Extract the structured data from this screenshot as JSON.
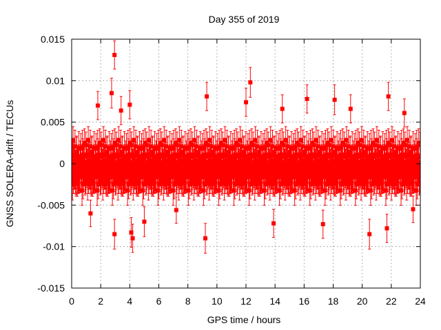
{
  "chart_data": {
    "type": "scatter",
    "title": "Day 355 of 2019",
    "xlabel": "GPS time / hours",
    "ylabel": "GNSS SOLERA-drift / TECUs",
    "xlim": [
      0,
      24
    ],
    "ylim": [
      -0.015,
      0.015
    ],
    "xticks": [
      0,
      2,
      4,
      6,
      8,
      10,
      12,
      14,
      16,
      18,
      20,
      22,
      24
    ],
    "xtick_labels": [
      "0",
      "2",
      "4",
      "6",
      "8",
      "10",
      "12",
      "14",
      "16",
      "18",
      "20",
      "22",
      "24"
    ],
    "yticks": [
      -0.015,
      -0.01,
      -0.005,
      0,
      0.005,
      0.01,
      0.015
    ],
    "ytick_labels": [
      "-0.015",
      "-0.01",
      "-0.005",
      "0",
      "0.005",
      "0.01",
      "0.015"
    ],
    "grid": true,
    "legend": "none",
    "series_color": "#ff0000",
    "marker": "square",
    "error_bars": true,
    "typical_error": 0.0018,
    "typical_spread_std": 0.0025,
    "outliers": [
      {
        "x": 2.95,
        "y": 0.0131,
        "err": 0.0017
      },
      {
        "x": 2.75,
        "y": 0.0085,
        "err": 0.0018
      },
      {
        "x": 12.3,
        "y": 0.0098,
        "err": 0.0018
      },
      {
        "x": 9.3,
        "y": 0.0081,
        "err": 0.0017
      },
      {
        "x": 21.8,
        "y": 0.0081,
        "err": 0.0017
      },
      {
        "x": 16.2,
        "y": 0.0078,
        "err": 0.0017
      },
      {
        "x": 18.1,
        "y": 0.0077,
        "err": 0.0018
      },
      {
        "x": 12.0,
        "y": 0.0074,
        "err": 0.0017
      },
      {
        "x": 2.95,
        "y": -0.0085,
        "err": 0.0018
      },
      {
        "x": 9.2,
        "y": -0.009,
        "err": 0.0018
      },
      {
        "x": 4.1,
        "y": -0.0083,
        "err": 0.0018
      },
      {
        "x": 4.2,
        "y": -0.009,
        "err": 0.0017
      },
      {
        "x": 20.5,
        "y": -0.0085,
        "err": 0.0018
      },
      {
        "x": 13.9,
        "y": -0.0072,
        "err": 0.0017
      },
      {
        "x": 5.0,
        "y": -0.007,
        "err": 0.0018
      },
      {
        "x": 17.3,
        "y": -0.0073,
        "err": 0.0017
      },
      {
        "x": 21.7,
        "y": -0.0078,
        "err": 0.0017
      },
      {
        "x": 1.3,
        "y": -0.006,
        "err": 0.0016
      },
      {
        "x": 23.5,
        "y": -0.0055,
        "err": 0.0016
      },
      {
        "x": 7.2,
        "y": -0.0056,
        "err": 0.0016
      },
      {
        "x": 3.4,
        "y": 0.0064,
        "err": 0.0017
      },
      {
        "x": 1.8,
        "y": 0.007,
        "err": 0.0017
      },
      {
        "x": 4.0,
        "y": 0.0071,
        "err": 0.0017
      },
      {
        "x": 14.5,
        "y": 0.0066,
        "err": 0.0017
      },
      {
        "x": 19.2,
        "y": 0.0066,
        "err": 0.0017
      },
      {
        "x": 22.9,
        "y": 0.0061,
        "err": 0.0017
      }
    ]
  }
}
